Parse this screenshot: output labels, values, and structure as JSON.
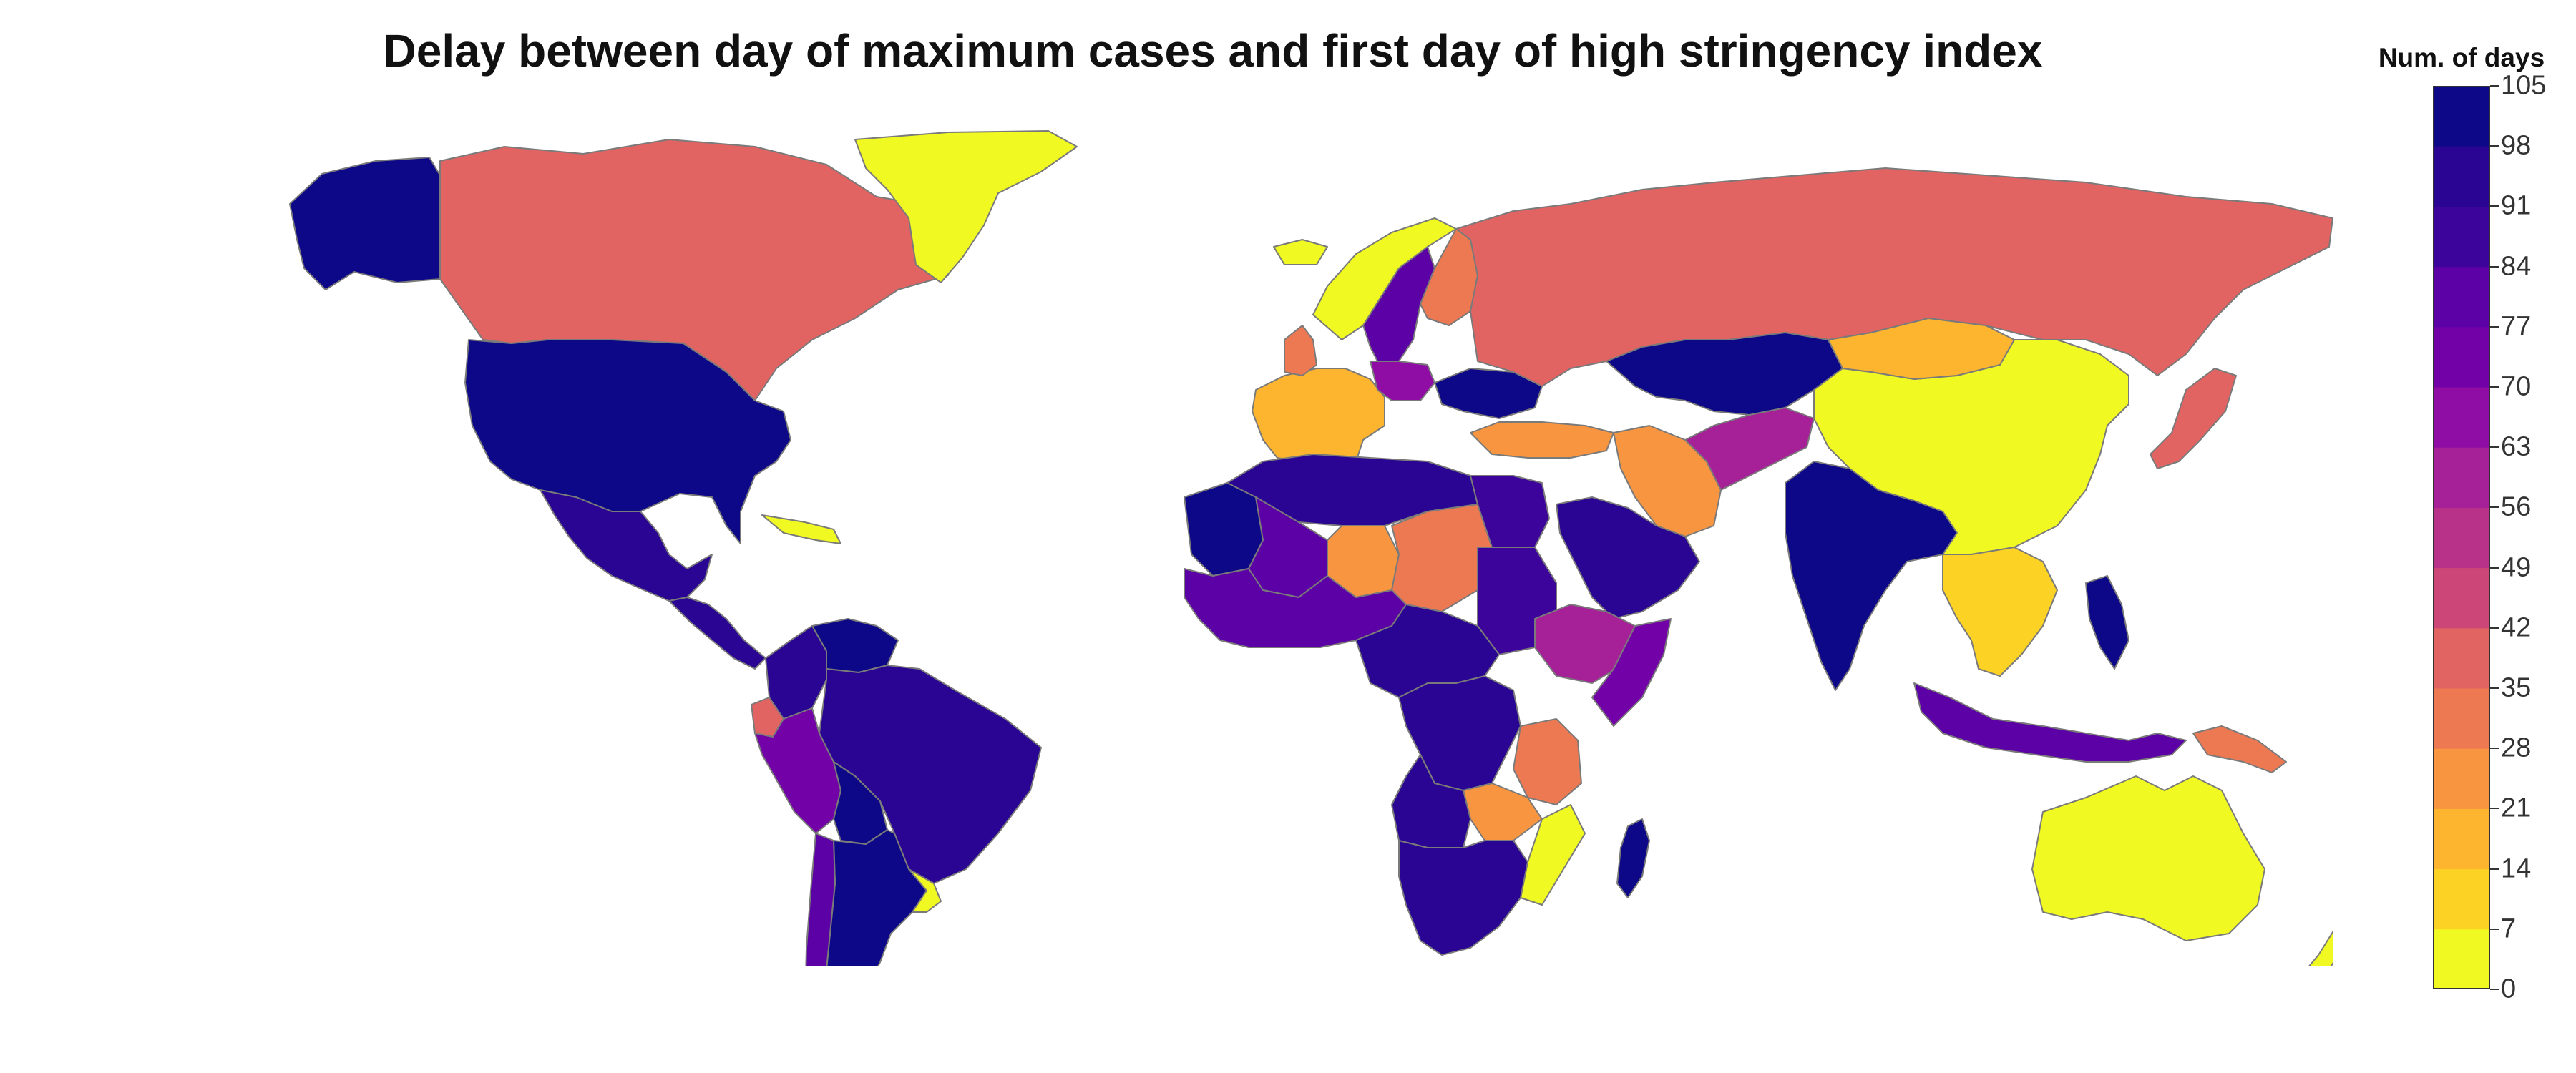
{
  "title": "Delay between day of maximum cases and first day of high stringency index",
  "colorbar": {
    "title": "Num. of days",
    "ticks": [
      "105",
      "98",
      "91",
      "84",
      "77",
      "70",
      "63",
      "56",
      "49",
      "42",
      "35",
      "28",
      "21",
      "14",
      "7",
      "0"
    ],
    "range": [
      0,
      105
    ],
    "step": 7,
    "colors": [
      "#f0f921",
      "#fcd225",
      "#fdb42f",
      "#f89540",
      "#ed7953",
      "#e16462",
      "#cc4778",
      "#b83289",
      "#a62098",
      "#8f0da4",
      "#7201a8",
      "#5c01a6",
      "#3c049b",
      "#2a0593",
      "#0d0887"
    ]
  },
  "map": {
    "missing_color": "#bdbdbd",
    "border_color": "#7a7a7a",
    "regions": [
      {
        "name": "Alaska",
        "days": 102
      },
      {
        "name": "Canada",
        "days": 38
      },
      {
        "name": "United States",
        "days": 102
      },
      {
        "name": "Greenland",
        "days": 3
      },
      {
        "name": "Mexico",
        "days": 92
      },
      {
        "name": "Central America",
        "days": 95
      },
      {
        "name": "Caribbean",
        "days": 5
      },
      {
        "name": "Colombia",
        "days": 95
      },
      {
        "name": "Venezuela",
        "days": 102
      },
      {
        "name": "Ecuador",
        "days": 35
      },
      {
        "name": "Peru",
        "days": 76
      },
      {
        "name": "Brazil",
        "days": 91
      },
      {
        "name": "Bolivia",
        "days": 102
      },
      {
        "name": "Argentina",
        "days": 102
      },
      {
        "name": "Chile",
        "days": 78
      },
      {
        "name": "Uruguay",
        "days": 5
      },
      {
        "name": "Iceland",
        "days": 5
      },
      {
        "name": "Norway",
        "days": 5
      },
      {
        "name": "Sweden",
        "days": 78
      },
      {
        "name": "Finland",
        "days": 28
      },
      {
        "name": "Western Europe",
        "days": 18
      },
      {
        "name": "United Kingdom",
        "days": 30
      },
      {
        "name": "Poland",
        "days": 65
      },
      {
        "name": "Ukraine",
        "days": 102
      },
      {
        "name": "Russia",
        "days": 38
      },
      {
        "name": "Kazakhstan",
        "days": 102
      },
      {
        "name": "Turkey",
        "days": 22
      },
      {
        "name": "Iran",
        "days": 22
      },
      {
        "name": "Afghanistan",
        "days": 60
      },
      {
        "name": "Saudi Arabia",
        "days": 92
      },
      {
        "name": "India",
        "days": 102
      },
      {
        "name": "China",
        "days": 3
      },
      {
        "name": "Mongolia",
        "days": 18
      },
      {
        "name": "Japan",
        "days": 38
      },
      {
        "name": "Southeast Asia",
        "days": 8
      },
      {
        "name": "Philippines",
        "days": 102
      },
      {
        "name": "Indonesia",
        "days": 80
      },
      {
        "name": "Papua New Guinea",
        "days": 30
      },
      {
        "name": "Australia",
        "days": 3
      },
      {
        "name": "New Zealand",
        "days": 5
      },
      {
        "name": "North Africa",
        "days": 92
      },
      {
        "name": "Mauritania",
        "days": 102
      },
      {
        "name": "Mali",
        "days": 78
      },
      {
        "name": "Niger",
        "days": 22
      },
      {
        "name": "Chad",
        "days": 30
      },
      {
        "name": "Egypt",
        "days": 85
      },
      {
        "name": "Sudan",
        "days": 84
      },
      {
        "name": "Ethiopia",
        "days": 60
      },
      {
        "name": "Somalia",
        "days": 72
      },
      {
        "name": "West Africa",
        "days": 80
      },
      {
        "name": "Central Africa",
        "days": 92
      },
      {
        "name": "DR Congo",
        "days": 92
      },
      {
        "name": "Tanzania",
        "days": 30
      },
      {
        "name": "Zambia",
        "days": 22
      },
      {
        "name": "Mozambique",
        "days": 5
      },
      {
        "name": "Angola",
        "days": 92
      },
      {
        "name": "Southern Africa",
        "days": 92
      },
      {
        "name": "Madagascar",
        "days": 102
      }
    ]
  }
}
